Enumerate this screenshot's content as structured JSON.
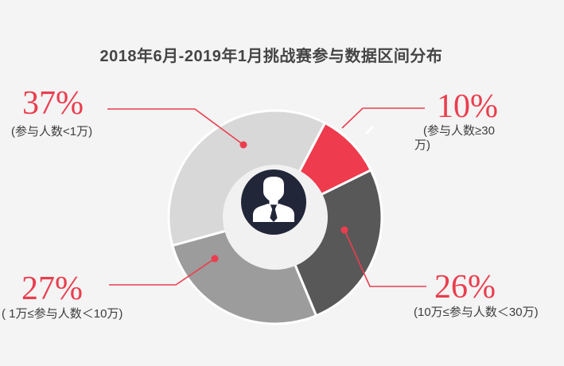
{
  "chart_data": {
    "type": "pie",
    "donut": true,
    "title": "2018年6月-2019年1月挑战赛参与数据区间分布",
    "unit": "%",
    "start_angle_deg": 27.8,
    "clockwise": true,
    "segments": [
      {
        "label": "10%",
        "value": 10,
        "range": "(参与人数≥30万)",
        "color": "#ee3b4d"
      },
      {
        "label": "26%",
        "value": 26,
        "range": "(10万≤参与人数＜30万)",
        "color": "#585858"
      },
      {
        "label": "27%",
        "value": 27,
        "range": "( 1万≤参与人数＜10万)",
        "color": "#9c9c9c"
      },
      {
        "label": "37%",
        "value": 37,
        "range": "(参与人数<1万)",
        "color": "#d8d8d8"
      }
    ],
    "center_icon": "businessman-avatar",
    "center_icon_bg": "#222639",
    "center_icon_color": "#ffffff",
    "hole_color": "#f2f1f2",
    "separator_color": "#ffffff",
    "accent_color": "#ea3e4e",
    "legend_position": "callout-labels"
  }
}
